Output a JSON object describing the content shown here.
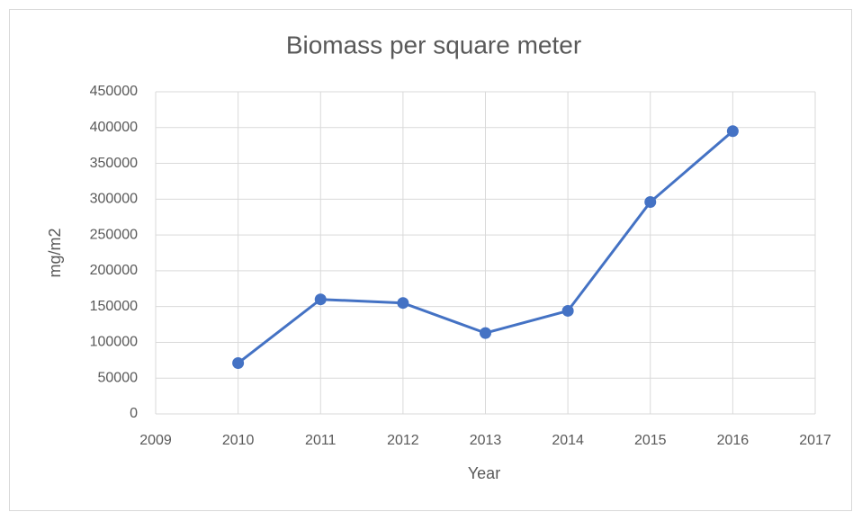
{
  "chart_data": {
    "type": "line",
    "title": "Biomass per square meter",
    "x_label": "Year",
    "y_label": "mg/m2",
    "x": [
      2010,
      2011,
      2012,
      2013,
      2014,
      2015,
      2016
    ],
    "series": [
      {
        "name": "Biomass",
        "color": "#4472c4",
        "values": [
          71000,
          160000,
          155000,
          113000,
          144000,
          296000,
          395000
        ]
      }
    ],
    "xlim": [
      2009,
      2017
    ],
    "xticks": [
      2009,
      2010,
      2011,
      2012,
      2013,
      2014,
      2015,
      2016,
      2017
    ],
    "ylim": [
      0,
      450000
    ],
    "yticks": [
      0,
      50000,
      100000,
      150000,
      200000,
      250000,
      300000,
      350000,
      400000,
      450000
    ],
    "grid": true
  }
}
